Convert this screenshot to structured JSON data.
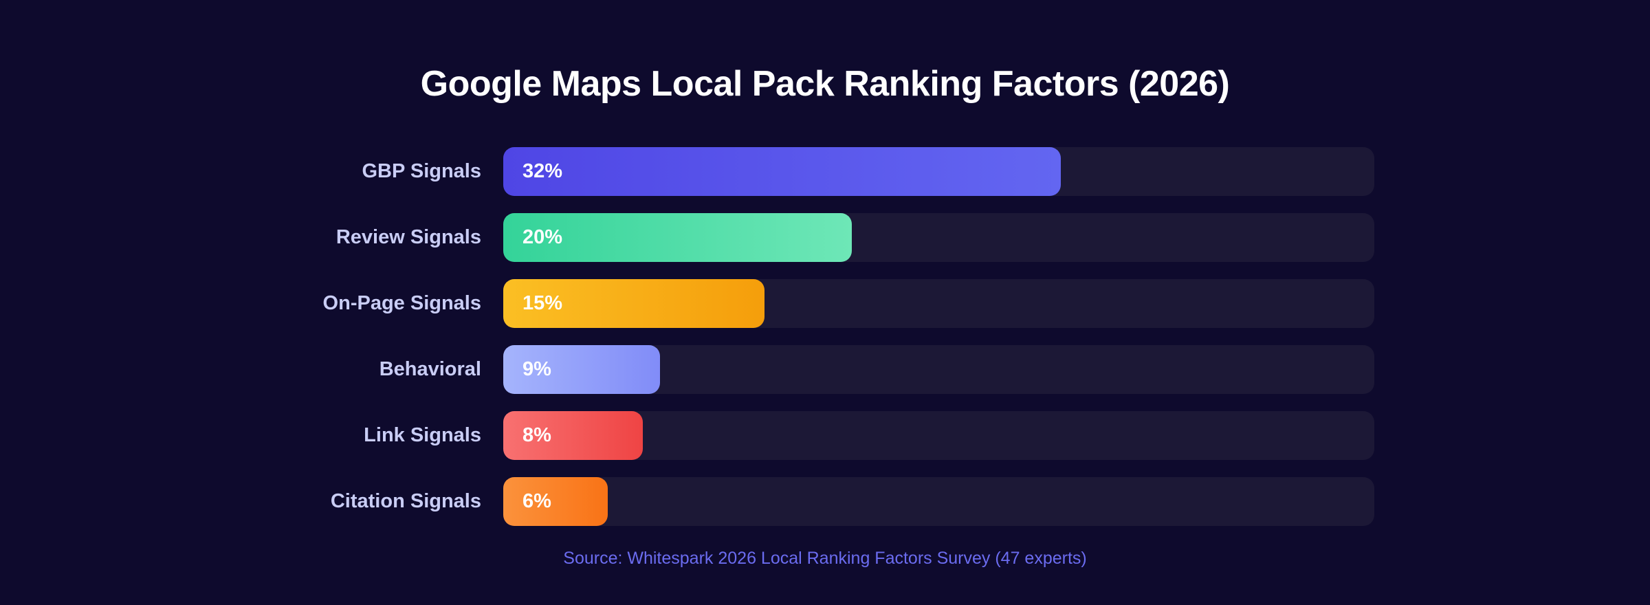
{
  "chart_data": {
    "type": "bar",
    "orientation": "horizontal",
    "title": "Google Maps Local Pack Ranking Factors (2026)",
    "categories": [
      "GBP Signals",
      "Review Signals",
      "On-Page Signals",
      "Behavioral",
      "Link Signals",
      "Citation Signals"
    ],
    "values": [
      32,
      20,
      15,
      9,
      8,
      6
    ],
    "value_labels": [
      "32%",
      "20%",
      "15%",
      "9%",
      "8%",
      "6%"
    ],
    "xlim": [
      0,
      50
    ],
    "colors": [
      [
        "#4f46e5",
        "#6366f1"
      ],
      [
        "#34d399",
        "#6ee7b7"
      ],
      [
        "#fbbf24",
        "#f59e0b"
      ],
      [
        "#a5b4fc",
        "#818cf8"
      ],
      [
        "#f87171",
        "#ef4444"
      ],
      [
        "#fb923c",
        "#f97316"
      ]
    ],
    "grid": false,
    "source": "Source: Whitespark 2026 Local Ranking Factors Survey (47 experts)"
  }
}
